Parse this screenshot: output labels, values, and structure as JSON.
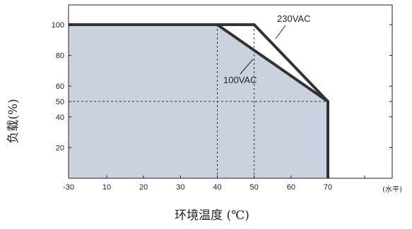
{
  "chart_data": {
    "type": "area",
    "xlabel": "环境温度 (℃)",
    "ylabel": "负载(%)",
    "x_unit_note": "(水平)",
    "xlim": [
      -30,
      85
    ],
    "ylim": [
      0,
      110
    ],
    "x_ticks": [
      -30,
      10,
      20,
      30,
      40,
      50,
      60,
      70
    ],
    "y_ticks": [
      20,
      40,
      50,
      60,
      80,
      100
    ],
    "grid": false,
    "background_fill": "#c9d2de",
    "series": [
      {
        "name": "230VAC",
        "x": [
          -30,
          50,
          70,
          70
        ],
        "y": [
          100,
          100,
          50,
          0
        ]
      },
      {
        "name": "100VAC",
        "x": [
          -30,
          40,
          70,
          70
        ],
        "y": [
          100,
          100,
          50,
          0
        ]
      }
    ],
    "reference_lines": [
      {
        "axis": "y",
        "value": 50,
        "style": "dashed"
      },
      {
        "axis": "x",
        "value": 40,
        "style": "dashed"
      },
      {
        "axis": "x",
        "value": 50,
        "style": "dashed"
      }
    ]
  }
}
